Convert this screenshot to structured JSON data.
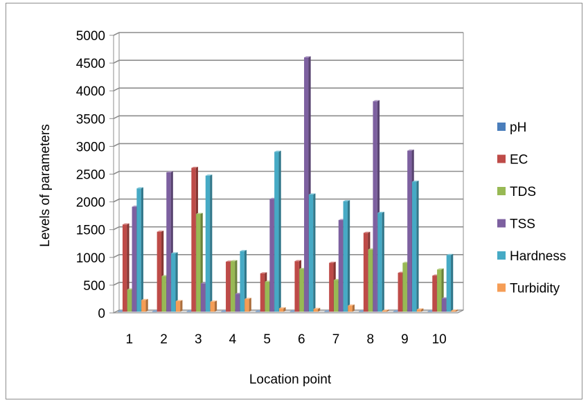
{
  "chart_data": {
    "type": "bar",
    "style": "3d-clustered-column",
    "title": "",
    "xlabel": "Location point",
    "ylabel": "Levels of parameters",
    "categories": [
      "1",
      "2",
      "3",
      "4",
      "5",
      "6",
      "7",
      "8",
      "9",
      "10"
    ],
    "ylim": [
      0,
      5000
    ],
    "yticks": [
      "0",
      "500",
      "1000",
      "1500",
      "2000",
      "2500",
      "3000",
      "3500",
      "4000",
      "4500",
      "5000"
    ],
    "grid": true,
    "legend_position": "right",
    "series": [
      {
        "name": "pH",
        "color": "#4a7ebb",
        "values": [
          7,
          7,
          7,
          7,
          7,
          7,
          7,
          7,
          7,
          7
        ]
      },
      {
        "name": "EC",
        "color": "#be4b48",
        "values": [
          1570,
          1440,
          2590,
          900,
          690,
          910,
          880,
          1420,
          700,
          650
        ]
      },
      {
        "name": "TDS",
        "color": "#98b954",
        "values": [
          400,
          640,
          1760,
          910,
          540,
          770,
          570,
          1120,
          880,
          760
        ]
      },
      {
        "name": "TSS",
        "color": "#7d60a0",
        "values": [
          1890,
          2510,
          510,
          320,
          2030,
          4580,
          1650,
          3790,
          2900,
          240
        ]
      },
      {
        "name": "Hardness",
        "color": "#46aac5",
        "values": [
          2220,
          1050,
          2450,
          1090,
          2880,
          2110,
          1990,
          1780,
          2340,
          1020
        ]
      },
      {
        "name": "Turbidity",
        "color": "#f59d56",
        "values": [
          210,
          190,
          180,
          230,
          60,
          50,
          110,
          20,
          40,
          20
        ]
      }
    ]
  }
}
